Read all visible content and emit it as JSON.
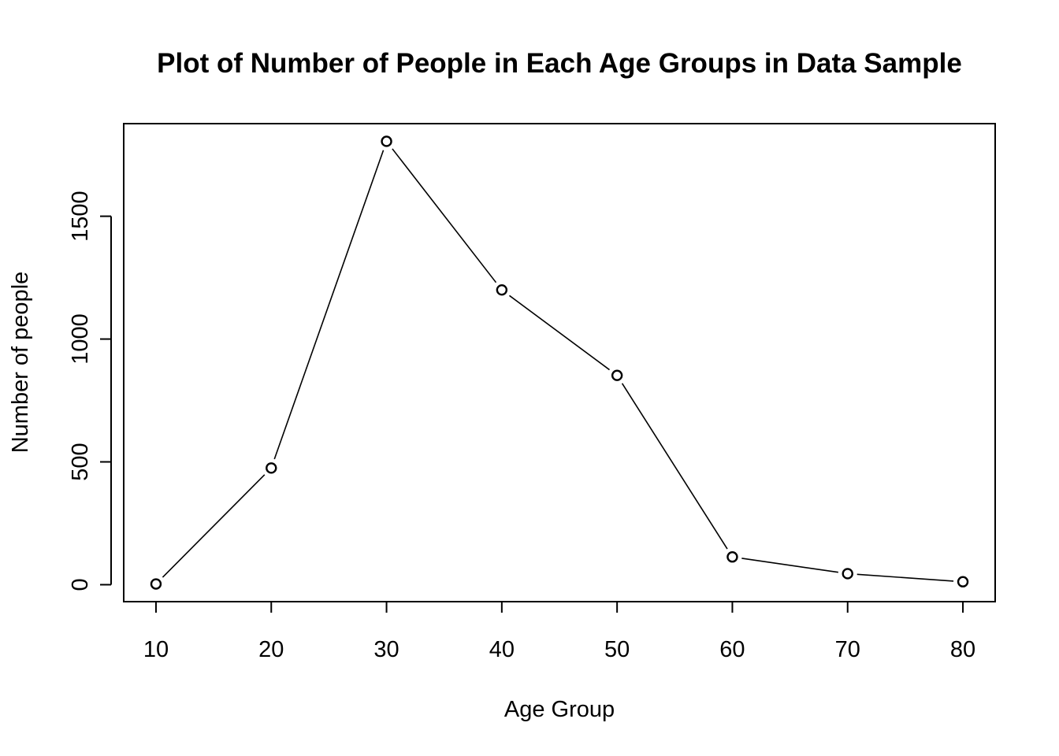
{
  "chart_data": {
    "type": "line",
    "title": "Plot of Number of People in Each Age Groups in Data Sample",
    "xlabel": "Age Group",
    "ylabel": "Number of people",
    "x": [
      10,
      20,
      30,
      40,
      50,
      60,
      70,
      80
    ],
    "y": [
      3,
      475,
      1805,
      1200,
      852,
      113,
      45,
      12
    ],
    "x_ticks": [
      10,
      20,
      30,
      40,
      50,
      60,
      70,
      80
    ],
    "y_ticks": [
      0,
      500,
      1000,
      1500
    ],
    "xlim": [
      7.2,
      82.8
    ],
    "ylim": [
      -69,
      1877
    ],
    "grid": false,
    "marker": "open-circle",
    "line_color": "#000000"
  }
}
